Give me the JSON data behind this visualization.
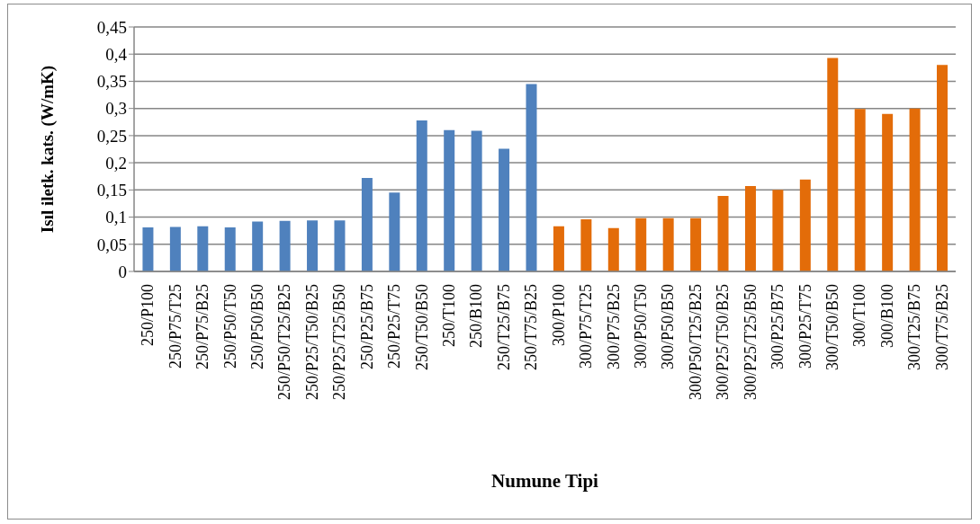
{
  "chart_data": {
    "type": "bar",
    "xlabel": "Numune Tipi",
    "ylabel": "Isıl iletk. kats. (W/mK)",
    "categories": [
      "250/P100",
      "250/P75/T25",
      "250/P75/B25",
      "250/P50/T50",
      "250/P50/B50",
      "250/P50/T25/B25",
      "250/P25/T50/B25",
      "250/P25/T25/B50",
      "250/P25/B75",
      "250/P25/T75",
      "250/T50/B50",
      "250/T100",
      "250/B100",
      "250/T25/B75",
      "250/T75/B25",
      "300/P100",
      "300/P75/T25",
      "300/P75/B25",
      "300/P50/T50",
      "300/P50/B50",
      "300/P50/T25/B25",
      "300/P25/T50/B25",
      "300/P25/T25/B50",
      "300/P25/B75",
      "300/P25/T75",
      "300/T50/B50",
      "300/T100",
      "300/B100",
      "300/T25/B75",
      "300/T75/B25"
    ],
    "values": [
      0.081,
      0.082,
      0.083,
      0.081,
      0.092,
      0.093,
      0.094,
      0.094,
      0.172,
      0.145,
      0.278,
      0.26,
      0.259,
      0.226,
      0.345,
      0.083,
      0.096,
      0.08,
      0.098,
      0.098,
      0.098,
      0.139,
      0.157,
      0.15,
      0.169,
      0.393,
      0.299,
      0.29,
      0.3,
      0.38
    ],
    "colors": [
      "#4f81bd",
      "#4f81bd",
      "#4f81bd",
      "#4f81bd",
      "#4f81bd",
      "#4f81bd",
      "#4f81bd",
      "#4f81bd",
      "#4f81bd",
      "#4f81bd",
      "#4f81bd",
      "#4f81bd",
      "#4f81bd",
      "#4f81bd",
      "#4f81bd",
      "#e36c09",
      "#e36c09",
      "#e36c09",
      "#e36c09",
      "#e36c09",
      "#e36c09",
      "#e36c09",
      "#e36c09",
      "#e36c09",
      "#e36c09",
      "#e36c09",
      "#e36c09",
      "#e36c09",
      "#e36c09",
      "#e36c09"
    ],
    "ylim": [
      0,
      0.45
    ],
    "yticks": [
      0,
      {
        "value": 0.05,
        "label": "0,05"
      },
      {
        "value": 0.1,
        "label": "0,1"
      },
      {
        "value": 0.15,
        "label": "0,15"
      },
      {
        "value": 0.2,
        "label": "0,2"
      },
      {
        "value": 0.25,
        "label": "0,25"
      },
      {
        "value": 0.3,
        "label": "0,3"
      },
      {
        "value": 0.35,
        "label": "0,35"
      },
      {
        "value": 0.4,
        "label": "0,4"
      },
      {
        "value": 0.45,
        "label": "0,45"
      }
    ],
    "grid": "y"
  }
}
